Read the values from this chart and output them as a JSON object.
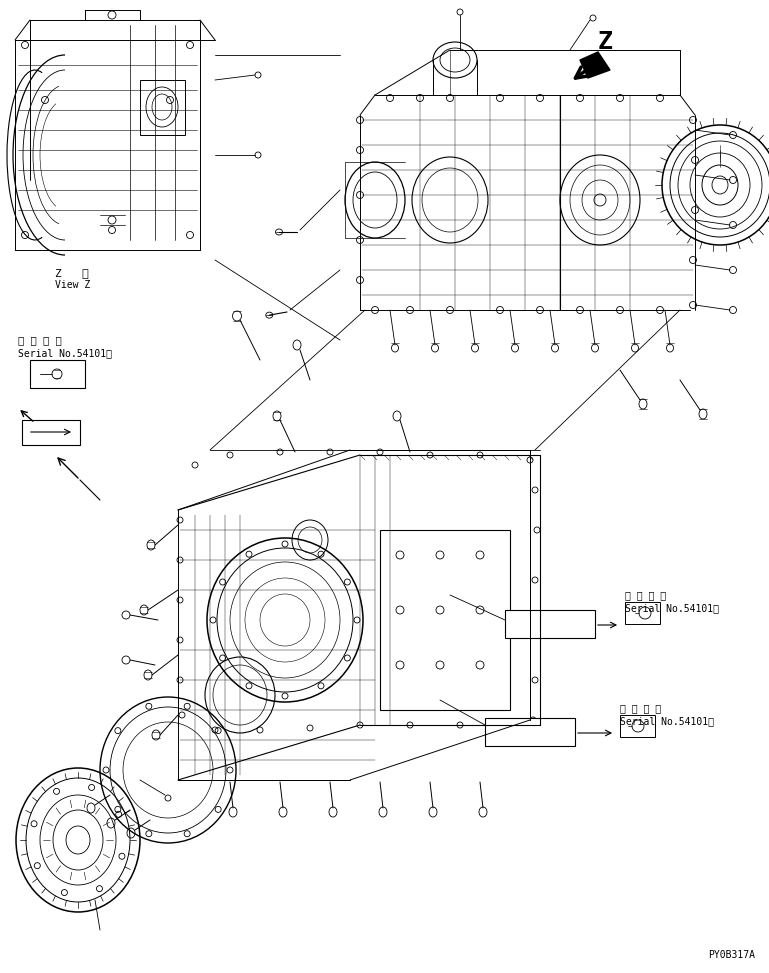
{
  "bg_color": "#ffffff",
  "fig_width": 7.69,
  "fig_height": 9.73,
  "dpi": 100,
  "part_number": "PY0B317A",
  "view_label_1": "Z   視",
  "view_label_2": "View Z",
  "serial_text_jp": "適 用 号 機",
  "serial_text_en": "Serial No.54101～",
  "z_label": "Z"
}
